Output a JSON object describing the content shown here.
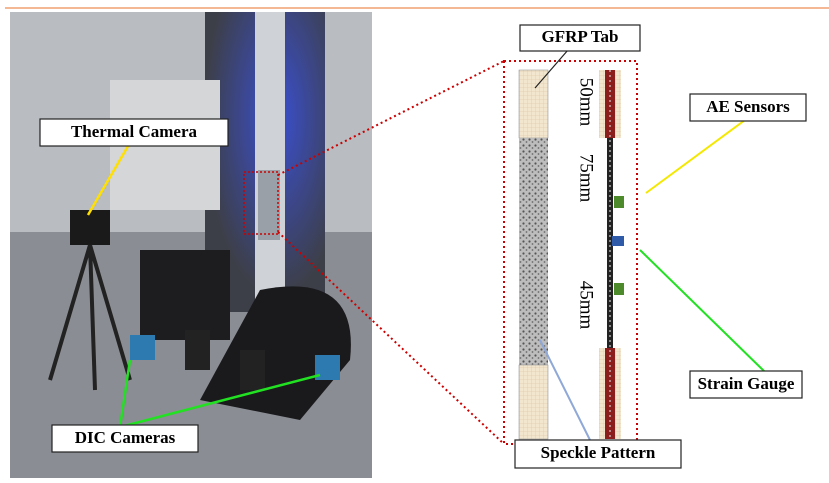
{
  "photo": {
    "labels": [
      "Thermal Camera",
      "DIC Cameras"
    ]
  },
  "schematic": {
    "labels": [
      "GFRP Tab",
      "AE Sensors",
      "Strain Gauge",
      "Speckle Pattern"
    ],
    "dimensions": [
      "50mm",
      "75mm",
      "45mm"
    ]
  }
}
